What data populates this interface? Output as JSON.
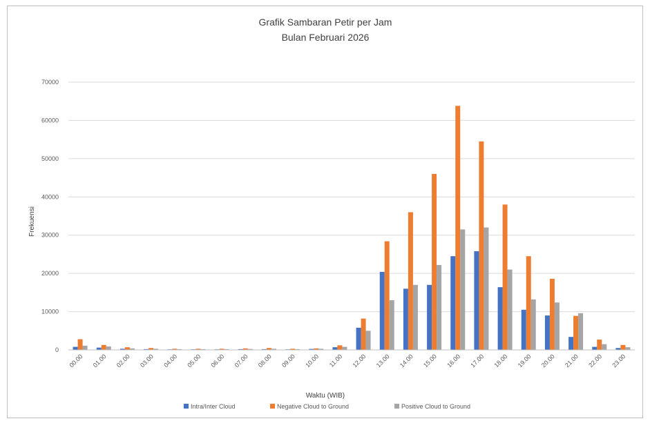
{
  "chart_data": {
    "type": "bar",
    "title": [
      "Grafik Sambaran Petir per Jam",
      "Bulan Februari 2026"
    ],
    "xlabel": "Waktu (WIB)",
    "ylabel": "Frekuensi",
    "ylim": [
      0,
      70000
    ],
    "yticks": [
      "0",
      "10000",
      "20000",
      "30000",
      "40000",
      "50000",
      "60000",
      "70000"
    ],
    "grid": true,
    "legend_position": "bottom",
    "categories": [
      "00.00",
      "01.00",
      "02.00",
      "03.00",
      "04.00",
      "05.00",
      "06.00",
      "07.00",
      "08.00",
      "09.00",
      "10.00",
      "11.00",
      "12.00",
      "13.00",
      "14.00",
      "15.00",
      "16.00",
      "17.00",
      "18.00",
      "19.00",
      "20.00",
      "21.00",
      "22.00",
      "23.00"
    ],
    "series": [
      {
        "name": "Intra/Inter Cloud",
        "color": "#4472C4",
        "values": [
          800,
          600,
          300,
          200,
          150,
          150,
          150,
          200,
          200,
          150,
          250,
          700,
          5800,
          20400,
          16000,
          17000,
          24500,
          25800,
          16400,
          10500,
          9000,
          3400,
          800,
          500
        ]
      },
      {
        "name": "Negative Cloud to Ground",
        "color": "#ED7D31",
        "values": [
          2800,
          1300,
          700,
          500,
          300,
          300,
          300,
          400,
          500,
          300,
          400,
          1200,
          8200,
          28400,
          36000,
          46000,
          63800,
          54500,
          38000,
          24500,
          18600,
          8900,
          2700,
          1300
        ]
      },
      {
        "name": "Positive Cloud to Ground",
        "color": "#A5A5A5",
        "values": [
          1100,
          900,
          400,
          300,
          200,
          200,
          200,
          250,
          300,
          200,
          300,
          800,
          5000,
          13000,
          17000,
          22200,
          31500,
          32000,
          21000,
          13200,
          12400,
          9600,
          1500,
          700
        ]
      }
    ]
  }
}
